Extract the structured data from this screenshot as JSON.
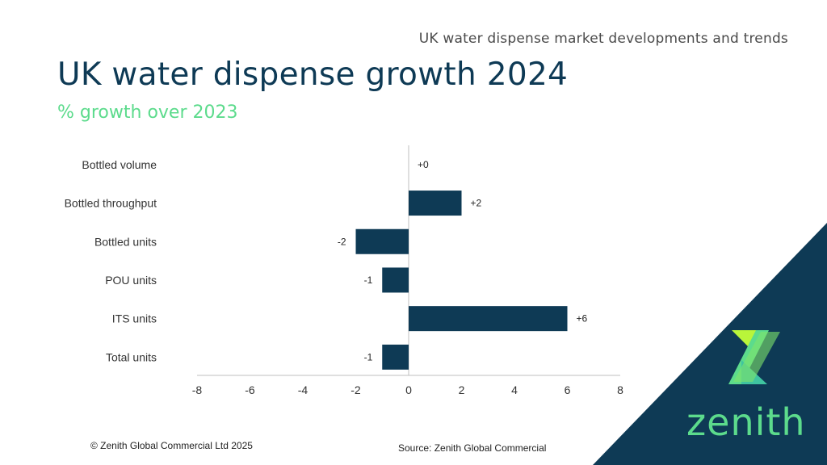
{
  "header": {
    "kicker": "UK water dispense market developments and trends",
    "title": "UK water dispense growth 2024",
    "subtitle": "% growth over 2023"
  },
  "footer": {
    "copyright": "© Zenith Global Commercial Ltd 2025",
    "source": "Source: Zenith Global Commercial"
  },
  "logo": {
    "word": "zenith",
    "icon": "zenith-z-logo-icon"
  },
  "colors": {
    "bar": "#0e3a55",
    "accent": "#5cdb8c",
    "corner": "#0e3a55"
  },
  "chart_data": {
    "type": "bar",
    "orientation": "horizontal",
    "categories": [
      "Bottled volume",
      "Bottled throughput",
      "Bottled units",
      "POU units",
      "ITS units",
      "Total units"
    ],
    "values": [
      0,
      2,
      -2,
      -1,
      6,
      -1
    ],
    "value_labels": [
      "+0",
      "+2",
      "-2",
      "-1",
      "+6",
      "-1"
    ],
    "xlim": [
      -8,
      8
    ],
    "xticks": [
      "-8",
      "-6",
      "-4",
      "-2",
      "0",
      "2",
      "4",
      "6",
      "8"
    ],
    "grid": false
  }
}
